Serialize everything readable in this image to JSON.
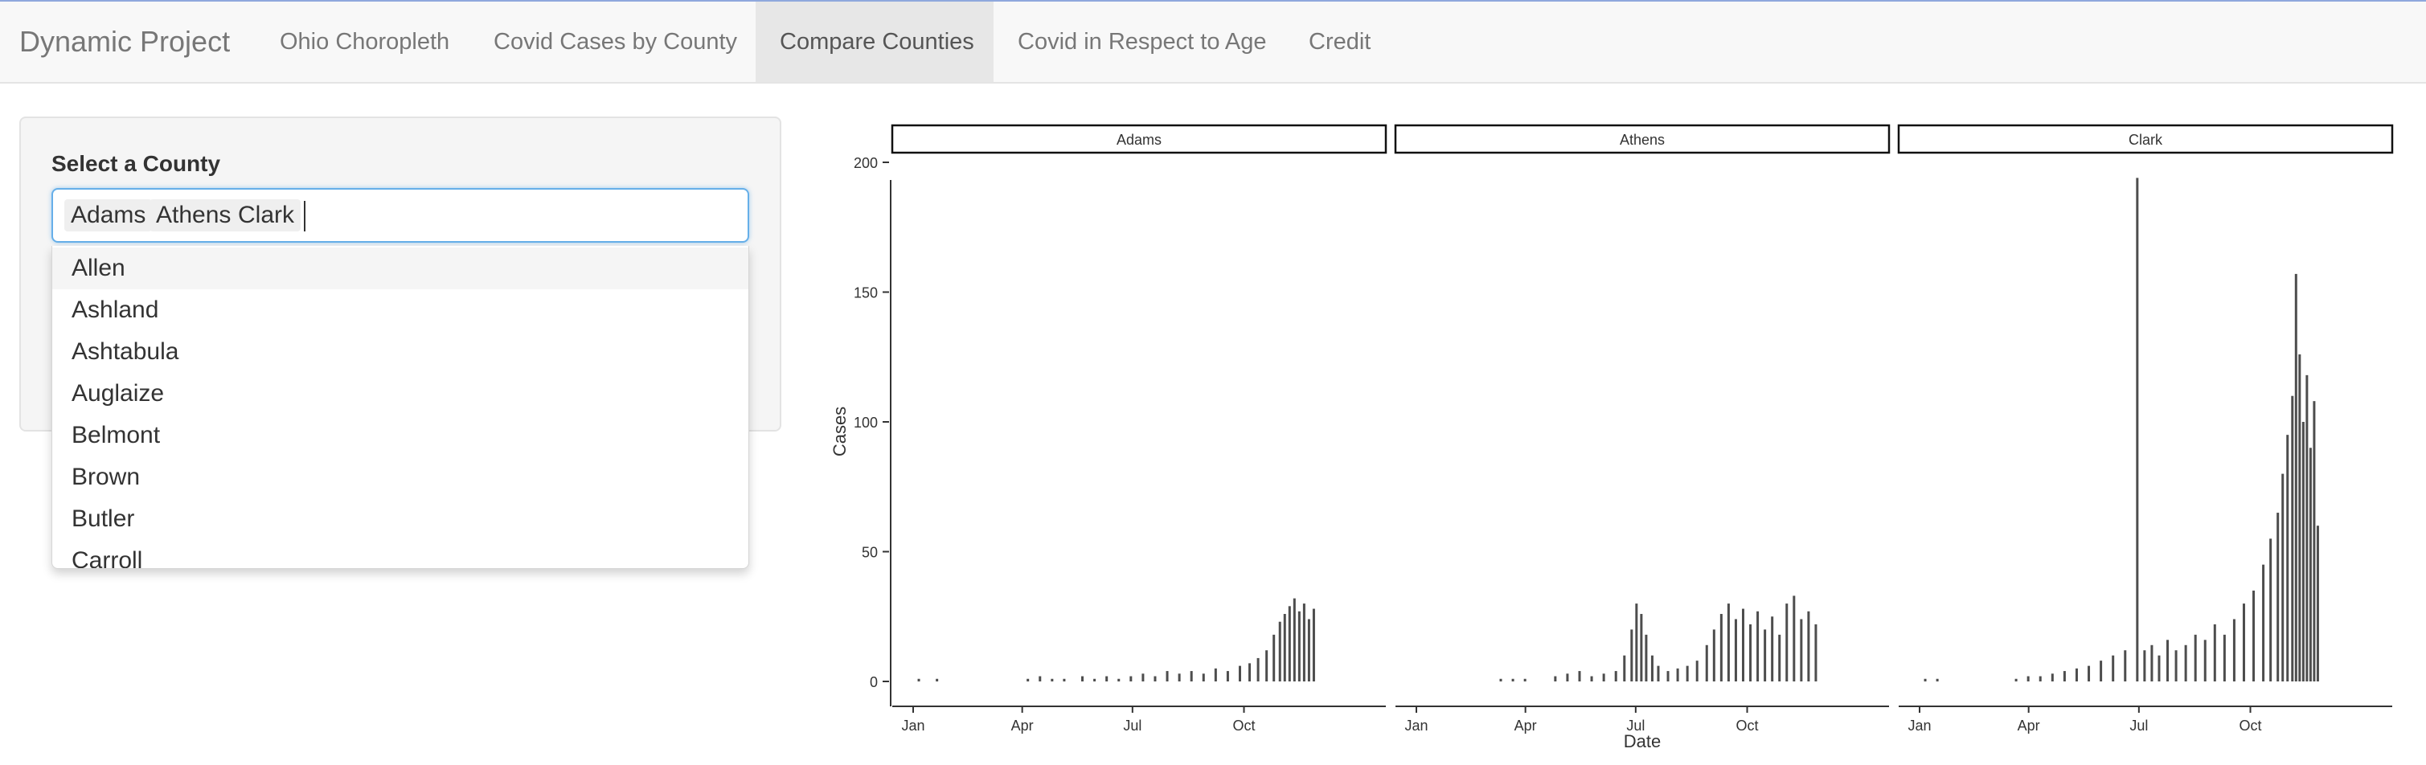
{
  "navbar": {
    "brand": "Dynamic Project",
    "tabs": [
      {
        "label": "Ohio Choropleth",
        "active": false
      },
      {
        "label": "Covid Cases by County",
        "active": false
      },
      {
        "label": "Compare Counties",
        "active": true
      },
      {
        "label": "Covid in Respect to Age",
        "active": false
      },
      {
        "label": "Credit",
        "active": false
      }
    ]
  },
  "sidebar": {
    "label": "Select a County",
    "selected": [
      "Adams",
      "Athens",
      "Clark"
    ],
    "options": [
      "Allen",
      "Ashland",
      "Ashtabula",
      "Auglaize",
      "Belmont",
      "Brown",
      "Butler",
      "Carroll"
    ]
  },
  "chart_data": {
    "type": "bar",
    "xlabel": "Date",
    "ylabel": "Cases",
    "ylim": [
      0,
      210
    ],
    "y_ticks": [
      0,
      50,
      100,
      150,
      200
    ],
    "x_ticks": [
      "Jan",
      "Apr",
      "Jul",
      "Oct"
    ],
    "grid": false,
    "facets": [
      {
        "name": "Adams",
        "bars": [
          {
            "day": 5,
            "value": 1
          },
          {
            "day": 20,
            "value": 1
          },
          {
            "day": 95,
            "value": 1
          },
          {
            "day": 105,
            "value": 2
          },
          {
            "day": 115,
            "value": 1
          },
          {
            "day": 125,
            "value": 1
          },
          {
            "day": 140,
            "value": 2
          },
          {
            "day": 150,
            "value": 1
          },
          {
            "day": 160,
            "value": 2
          },
          {
            "day": 170,
            "value": 1
          },
          {
            "day": 180,
            "value": 2
          },
          {
            "day": 190,
            "value": 3
          },
          {
            "day": 200,
            "value": 2
          },
          {
            "day": 210,
            "value": 4
          },
          {
            "day": 220,
            "value": 3
          },
          {
            "day": 230,
            "value": 4
          },
          {
            "day": 240,
            "value": 3
          },
          {
            "day": 250,
            "value": 5
          },
          {
            "day": 260,
            "value": 4
          },
          {
            "day": 270,
            "value": 6
          },
          {
            "day": 278,
            "value": 7
          },
          {
            "day": 285,
            "value": 9
          },
          {
            "day": 292,
            "value": 12
          },
          {
            "day": 298,
            "value": 18
          },
          {
            "day": 303,
            "value": 23
          },
          {
            "day": 307,
            "value": 26
          },
          {
            "day": 311,
            "value": 29
          },
          {
            "day": 315,
            "value": 32
          },
          {
            "day": 319,
            "value": 27
          },
          {
            "day": 323,
            "value": 30
          },
          {
            "day": 327,
            "value": 24
          },
          {
            "day": 331,
            "value": 28
          }
        ]
      },
      {
        "name": "Athens",
        "bars": [
          {
            "day": 70,
            "value": 1
          },
          {
            "day": 80,
            "value": 1
          },
          {
            "day": 90,
            "value": 1
          },
          {
            "day": 115,
            "value": 2
          },
          {
            "day": 125,
            "value": 3
          },
          {
            "day": 135,
            "value": 4
          },
          {
            "day": 145,
            "value": 2
          },
          {
            "day": 155,
            "value": 3
          },
          {
            "day": 165,
            "value": 4
          },
          {
            "day": 172,
            "value": 10
          },
          {
            "day": 178,
            "value": 20
          },
          {
            "day": 182,
            "value": 30
          },
          {
            "day": 186,
            "value": 26
          },
          {
            "day": 190,
            "value": 18
          },
          {
            "day": 195,
            "value": 10
          },
          {
            "day": 200,
            "value": 6
          },
          {
            "day": 208,
            "value": 4
          },
          {
            "day": 216,
            "value": 5
          },
          {
            "day": 224,
            "value": 6
          },
          {
            "day": 232,
            "value": 8
          },
          {
            "day": 240,
            "value": 14
          },
          {
            "day": 246,
            "value": 20
          },
          {
            "day": 252,
            "value": 26
          },
          {
            "day": 258,
            "value": 30
          },
          {
            "day": 264,
            "value": 24
          },
          {
            "day": 270,
            "value": 28
          },
          {
            "day": 276,
            "value": 22
          },
          {
            "day": 282,
            "value": 27
          },
          {
            "day": 288,
            "value": 20
          },
          {
            "day": 294,
            "value": 25
          },
          {
            "day": 300,
            "value": 18
          },
          {
            "day": 306,
            "value": 30
          },
          {
            "day": 312,
            "value": 33
          },
          {
            "day": 318,
            "value": 24
          },
          {
            "day": 324,
            "value": 27
          },
          {
            "day": 330,
            "value": 22
          }
        ]
      },
      {
        "name": "Clark",
        "bars": [
          {
            "day": 5,
            "value": 1
          },
          {
            "day": 15,
            "value": 1
          },
          {
            "day": 80,
            "value": 1
          },
          {
            "day": 90,
            "value": 2
          },
          {
            "day": 100,
            "value": 2
          },
          {
            "day": 110,
            "value": 3
          },
          {
            "day": 120,
            "value": 4
          },
          {
            "day": 130,
            "value": 5
          },
          {
            "day": 140,
            "value": 6
          },
          {
            "day": 150,
            "value": 8
          },
          {
            "day": 160,
            "value": 10
          },
          {
            "day": 170,
            "value": 12
          },
          {
            "day": 180,
            "value": 194
          },
          {
            "day": 186,
            "value": 12
          },
          {
            "day": 192,
            "value": 14
          },
          {
            "day": 198,
            "value": 10
          },
          {
            "day": 205,
            "value": 16
          },
          {
            "day": 212,
            "value": 12
          },
          {
            "day": 220,
            "value": 14
          },
          {
            "day": 228,
            "value": 18
          },
          {
            "day": 236,
            "value": 16
          },
          {
            "day": 244,
            "value": 22
          },
          {
            "day": 252,
            "value": 18
          },
          {
            "day": 260,
            "value": 24
          },
          {
            "day": 268,
            "value": 30
          },
          {
            "day": 276,
            "value": 35
          },
          {
            "day": 284,
            "value": 45
          },
          {
            "day": 290,
            "value": 55
          },
          {
            "day": 296,
            "value": 65
          },
          {
            "day": 300,
            "value": 80
          },
          {
            "day": 304,
            "value": 95
          },
          {
            "day": 308,
            "value": 110
          },
          {
            "day": 311,
            "value": 157
          },
          {
            "day": 314,
            "value": 126
          },
          {
            "day": 317,
            "value": 100
          },
          {
            "day": 320,
            "value": 118
          },
          {
            "day": 323,
            "value": 90
          },
          {
            "day": 326,
            "value": 108
          },
          {
            "day": 329,
            "value": 60
          }
        ]
      }
    ]
  }
}
